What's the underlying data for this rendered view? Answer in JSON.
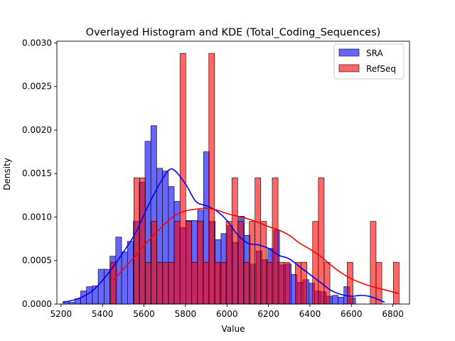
{
  "chart_data": {
    "type": "histogram",
    "title": "Overlayed Histogram and KDE (Total_Coding_Sequences)",
    "xlabel": "Value",
    "ylabel": "Density",
    "xlim": [
      5180,
      6880
    ],
    "ylim": [
      0,
      0.00302
    ],
    "xticks": [
      5200,
      5400,
      5600,
      5800,
      6000,
      6200,
      6400,
      6600,
      6800
    ],
    "xtick_labels": [
      "5200",
      "5400",
      "5600",
      "5800",
      "6000",
      "6200",
      "6400",
      "6600",
      "6800"
    ],
    "yticks": [
      0,
      0.0005,
      0.001,
      0.0015,
      0.002,
      0.0025,
      0.003
    ],
    "ytick_labels": [
      "0.0000",
      "0.0005",
      "0.0010",
      "0.0015",
      "0.0020",
      "0.0025",
      "0.0030"
    ],
    "legend_position": "top-right",
    "grid": false,
    "series": [
      {
        "name": "SRA",
        "color": "#0000ff",
        "bin_start": 5210,
        "bin_width": 28.2,
        "densities": [
          3e-05,
          2e-05,
          6e-05,
          0.00015,
          0.0002,
          0.00021,
          0.0004,
          0.0004,
          0.00055,
          0.00077,
          0.0006,
          0.00072,
          0.00095,
          0.0014,
          0.00187,
          0.00205,
          0.00156,
          0.00153,
          0.00135,
          0.00118,
          0.00088,
          0.00096,
          0.00096,
          0.00108,
          0.00175,
          0.00095,
          0.00074,
          0.00081,
          0.0009,
          0.00071,
          0.00101,
          0.00079,
          0.00046,
          0.00061,
          0.00051,
          0.00064,
          0.00085,
          0.00045,
          0.00046,
          0.00034,
          0.00025,
          0.00028,
          0.00024,
          0.00015,
          0.00014,
          9e-05,
          0.0001,
          8e-05,
          0.0002,
          7e-05
        ],
        "kde": {
          "x": [
            5210,
            5280,
            5350,
            5420,
            5490,
            5560,
            5620,
            5680,
            5720,
            5750,
            5800,
            5850,
            5900,
            5950,
            6000,
            6050,
            6100,
            6150,
            6200,
            6250,
            6300,
            6350,
            6400,
            6450,
            6500,
            6550,
            6600,
            6650,
            6700,
            6760
          ],
          "y": [
            2e-05,
            6e-05,
            0.00015,
            0.00033,
            0.00056,
            0.00082,
            0.00113,
            0.0014,
            0.00154,
            0.00153,
            0.00138,
            0.00118,
            0.00113,
            0.00107,
            0.00096,
            0.0008,
            0.0007,
            0.00068,
            0.00064,
            0.00056,
            0.00052,
            0.00043,
            0.00034,
            0.00025,
            0.00016,
            0.00011,
            9e-05,
            0.0001,
            8e-05,
            2e-05
          ]
        }
      },
      {
        "name": "RefSeq",
        "color": "#ff0000",
        "bin_start": 5440,
        "bin_width": 27.8,
        "densities": [
          0.00048,
          0.0,
          0.0,
          0.0,
          0.00145,
          0.00145,
          0.00048,
          0.00095,
          0.00048,
          0.00048,
          0.00048,
          0.00095,
          0.00288,
          0.00095,
          0.00048,
          0.00095,
          0.00048,
          0.00288,
          0.00048,
          0.00048,
          0.00095,
          0.00145,
          0.00095,
          0.00048,
          0.00095,
          0.00145,
          0.00095,
          0.00048,
          0.00145,
          0.00048,
          0.00048,
          0.0,
          0.00048,
          0.00048,
          0.0,
          0.00095,
          0.00145,
          0.00048,
          0.0,
          0.0,
          0.0,
          0.00048,
          0.0,
          0.0,
          0.0,
          0.00095,
          0.00048,
          0.0,
          0.0,
          0.00048
        ],
        "kde": {
          "x": [
            5450,
            5500,
            5550,
            5600,
            5650,
            5700,
            5750,
            5800,
            5850,
            5900,
            5950,
            6000,
            6050,
            6100,
            6150,
            6200,
            6250,
            6300,
            6350,
            6400,
            6450,
            6500,
            6550,
            6600,
            6650,
            6700,
            6750,
            6830
          ],
          "y": [
            0.00027,
            0.0004,
            0.00053,
            0.00067,
            0.0008,
            0.00092,
            0.00102,
            0.00107,
            0.00109,
            0.0011,
            0.00108,
            0.00104,
            0.00101,
            0.00098,
            0.00094,
            0.00089,
            0.00085,
            0.00079,
            0.0007,
            0.00063,
            0.00055,
            0.00045,
            0.00036,
            0.00029,
            0.00024,
            0.0002,
            0.00017,
            0.00012
          ]
        }
      }
    ]
  }
}
